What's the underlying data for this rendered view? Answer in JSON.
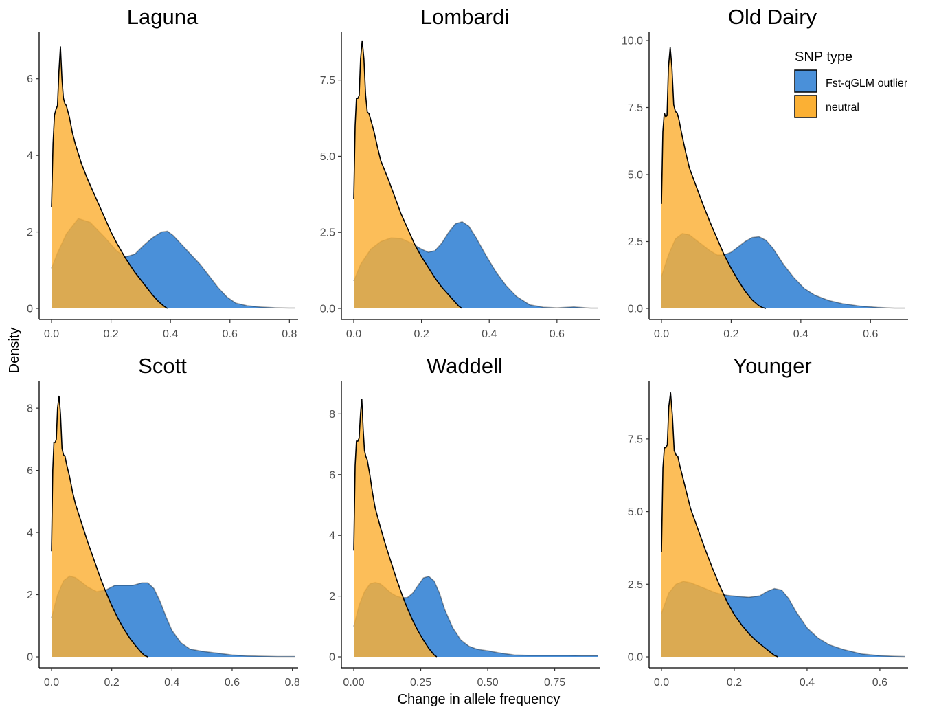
{
  "figure": {
    "ylabel": "Density",
    "xlabel": "Change in allele frequency"
  },
  "legend": {
    "title": "SNP type",
    "items": [
      {
        "label": "Fst-qGLM outlier",
        "color": "#4A90D9"
      },
      {
        "label": "neutral",
        "color": "#FBB034"
      }
    ],
    "placement": "top-right (inside Old Dairy panel)"
  },
  "colors": {
    "outlier": "#4A90D9",
    "neutral": "#FBB034",
    "overlap": "#D3A12F",
    "outline": "#000000"
  },
  "chart_data": [
    {
      "type": "area",
      "title": "Laguna",
      "xlim": [
        0,
        0.82
      ],
      "ylim": [
        0,
        7
      ],
      "xticks": [
        0.0,
        0.2,
        0.4,
        0.6,
        0.8
      ],
      "xtick_labels": [
        "0.0",
        "0.2",
        "0.4",
        "0.6",
        "0.8"
      ],
      "yticks": [
        0,
        2,
        4,
        6
      ],
      "ytick_labels": [
        "0",
        "2",
        "4",
        "6"
      ],
      "series": [
        {
          "name": "Fst-qGLM outlier",
          "x": [
            0.0,
            0.02,
            0.05,
            0.09,
            0.13,
            0.18,
            0.22,
            0.25,
            0.28,
            0.31,
            0.34,
            0.37,
            0.39,
            0.41,
            0.44,
            0.47,
            0.5,
            0.53,
            0.56,
            0.59,
            0.62,
            0.66,
            0.7,
            0.75,
            0.8,
            0.82
          ],
          "y": [
            1.05,
            1.45,
            1.95,
            2.35,
            2.25,
            1.85,
            1.5,
            1.35,
            1.42,
            1.65,
            1.85,
            2.0,
            2.02,
            1.9,
            1.65,
            1.4,
            1.15,
            0.85,
            0.55,
            0.3,
            0.14,
            0.07,
            0.04,
            0.02,
            0.01,
            0.01
          ]
        },
        {
          "name": "neutral",
          "x": [
            0.0,
            0.005,
            0.01,
            0.015,
            0.02,
            0.025,
            0.03,
            0.035,
            0.04,
            0.045,
            0.05,
            0.06,
            0.07,
            0.08,
            0.1,
            0.12,
            0.14,
            0.16,
            0.18,
            0.2,
            0.22,
            0.25,
            0.28,
            0.31,
            0.34,
            0.36,
            0.38,
            0.39
          ],
          "y": [
            2.65,
            4.3,
            5.05,
            5.2,
            5.3,
            6.2,
            6.85,
            6.0,
            5.5,
            5.35,
            5.3,
            5.0,
            4.6,
            4.3,
            3.8,
            3.4,
            3.05,
            2.7,
            2.35,
            2.0,
            1.7,
            1.3,
            0.95,
            0.65,
            0.35,
            0.18,
            0.05,
            0.0
          ]
        }
      ]
    },
    {
      "type": "area",
      "title": "Lombardi",
      "xlim": [
        0,
        0.72
      ],
      "ylim": [
        0,
        8.8
      ],
      "xticks": [
        0.0,
        0.2,
        0.4,
        0.6
      ],
      "xtick_labels": [
        "0.0",
        "0.2",
        "0.4",
        "0.6"
      ],
      "yticks": [
        0,
        2.5,
        5.0,
        7.5
      ],
      "ytick_labels": [
        "0.0",
        "2.5",
        "5.0",
        "7.5"
      ],
      "series": [
        {
          "name": "Fst-qGLM outlier",
          "x": [
            0.0,
            0.02,
            0.05,
            0.08,
            0.11,
            0.14,
            0.17,
            0.2,
            0.22,
            0.24,
            0.26,
            0.28,
            0.3,
            0.32,
            0.34,
            0.36,
            0.39,
            0.42,
            0.45,
            0.48,
            0.52,
            0.56,
            0.6,
            0.65,
            0.7,
            0.72
          ],
          "y": [
            0.9,
            1.45,
            1.95,
            2.2,
            2.32,
            2.3,
            2.15,
            1.95,
            1.85,
            1.9,
            2.15,
            2.5,
            2.78,
            2.85,
            2.7,
            2.35,
            1.75,
            1.2,
            0.75,
            0.4,
            0.12,
            0.04,
            0.02,
            0.05,
            0.01,
            0.01
          ]
        },
        {
          "name": "neutral",
          "x": [
            0.0,
            0.004,
            0.008,
            0.012,
            0.016,
            0.02,
            0.025,
            0.03,
            0.035,
            0.04,
            0.045,
            0.05,
            0.06,
            0.07,
            0.08,
            0.1,
            0.12,
            0.14,
            0.16,
            0.18,
            0.2,
            0.22,
            0.24,
            0.26,
            0.28,
            0.3,
            0.31,
            0.32
          ],
          "y": [
            3.6,
            6.0,
            6.9,
            6.9,
            7.0,
            8.2,
            8.8,
            8.2,
            7.0,
            6.45,
            6.4,
            6.2,
            5.8,
            5.3,
            4.85,
            4.3,
            3.7,
            3.1,
            2.6,
            2.1,
            1.7,
            1.35,
            1.0,
            0.7,
            0.45,
            0.2,
            0.08,
            0.0
          ]
        }
      ]
    },
    {
      "type": "area",
      "title": "Old Dairy",
      "xlim": [
        0,
        0.7
      ],
      "ylim": [
        0,
        10
      ],
      "xticks": [
        0.0,
        0.2,
        0.4,
        0.6
      ],
      "xtick_labels": [
        "0.0",
        "0.2",
        "0.4",
        "0.6"
      ],
      "yticks": [
        0,
        2.5,
        5.0,
        7.5,
        10.0
      ],
      "ytick_labels": [
        "0.0",
        "2.5",
        "5.0",
        "7.5",
        "10.0"
      ],
      "series": [
        {
          "name": "Fst-qGLM outlier",
          "x": [
            0.0,
            0.02,
            0.04,
            0.06,
            0.08,
            0.1,
            0.12,
            0.14,
            0.16,
            0.18,
            0.2,
            0.22,
            0.24,
            0.26,
            0.28,
            0.3,
            0.32,
            0.35,
            0.38,
            0.41,
            0.44,
            0.48,
            0.52,
            0.57,
            0.62,
            0.67,
            0.7
          ],
          "y": [
            1.2,
            2.0,
            2.6,
            2.8,
            2.75,
            2.55,
            2.35,
            2.15,
            2.0,
            2.0,
            2.1,
            2.3,
            2.5,
            2.65,
            2.68,
            2.55,
            2.25,
            1.65,
            1.15,
            0.75,
            0.5,
            0.3,
            0.18,
            0.09,
            0.04,
            0.01,
            0.01
          ]
        },
        {
          "name": "neutral",
          "x": [
            0.0,
            0.004,
            0.008,
            0.012,
            0.016,
            0.02,
            0.025,
            0.03,
            0.035,
            0.04,
            0.045,
            0.05,
            0.06,
            0.07,
            0.08,
            0.1,
            0.12,
            0.14,
            0.16,
            0.18,
            0.2,
            0.22,
            0.24,
            0.26,
            0.28,
            0.29,
            0.3
          ],
          "y": [
            3.9,
            6.6,
            7.3,
            7.15,
            7.2,
            9.0,
            9.75,
            9.0,
            7.6,
            7.35,
            7.3,
            7.05,
            6.4,
            5.8,
            5.25,
            4.55,
            3.85,
            3.2,
            2.6,
            2.0,
            1.5,
            1.05,
            0.65,
            0.32,
            0.1,
            0.03,
            0.0
          ]
        }
      ]
    },
    {
      "type": "area",
      "title": "Scott",
      "xlim": [
        0,
        0.81
      ],
      "ylim": [
        0,
        8.6
      ],
      "xticks": [
        0.0,
        0.2,
        0.4,
        0.6,
        0.8
      ],
      "xtick_labels": [
        "0.0",
        "0.2",
        "0.4",
        "0.6",
        "0.8"
      ],
      "yticks": [
        0,
        2,
        4,
        6,
        8
      ],
      "ytick_labels": [
        "0",
        "2",
        "4",
        "6",
        "8"
      ],
      "series": [
        {
          "name": "Fst-qGLM outlier",
          "x": [
            0.0,
            0.02,
            0.04,
            0.06,
            0.08,
            0.1,
            0.12,
            0.15,
            0.18,
            0.21,
            0.24,
            0.27,
            0.3,
            0.32,
            0.34,
            0.36,
            0.38,
            0.4,
            0.43,
            0.46,
            0.5,
            0.55,
            0.6,
            0.65,
            0.7,
            0.75,
            0.81
          ],
          "y": [
            1.25,
            2.0,
            2.45,
            2.6,
            2.55,
            2.4,
            2.25,
            2.1,
            2.15,
            2.3,
            2.3,
            2.3,
            2.38,
            2.38,
            2.2,
            1.8,
            1.3,
            0.85,
            0.45,
            0.25,
            0.18,
            0.12,
            0.06,
            0.03,
            0.02,
            0.01,
            0.01
          ]
        },
        {
          "name": "neutral",
          "x": [
            0.0,
            0.004,
            0.008,
            0.012,
            0.016,
            0.02,
            0.025,
            0.03,
            0.035,
            0.04,
            0.045,
            0.05,
            0.06,
            0.07,
            0.08,
            0.1,
            0.12,
            0.14,
            0.16,
            0.18,
            0.2,
            0.22,
            0.24,
            0.26,
            0.28,
            0.3,
            0.31,
            0.32
          ],
          "y": [
            3.4,
            6.0,
            6.9,
            6.9,
            7.0,
            8.0,
            8.4,
            7.8,
            6.7,
            6.5,
            6.45,
            6.2,
            5.8,
            5.3,
            4.9,
            4.3,
            3.7,
            3.15,
            2.6,
            2.1,
            1.65,
            1.25,
            0.9,
            0.6,
            0.35,
            0.12,
            0.04,
            0.0
          ]
        }
      ]
    },
    {
      "type": "area",
      "title": "Waddell",
      "xlim": [
        0,
        0.91
      ],
      "ylim": [
        0,
        8.8
      ],
      "xticks": [
        0.0,
        0.25,
        0.5,
        0.75
      ],
      "xtick_labels": [
        "0.00",
        "0.25",
        "0.50",
        "0.75"
      ],
      "yticks": [
        0,
        2,
        4,
        6,
        8
      ],
      "ytick_labels": [
        "0",
        "2",
        "4",
        "6",
        "8"
      ],
      "series": [
        {
          "name": "Fst-qGLM outlier",
          "x": [
            0.0,
            0.02,
            0.04,
            0.06,
            0.08,
            0.1,
            0.12,
            0.14,
            0.16,
            0.18,
            0.2,
            0.22,
            0.24,
            0.26,
            0.28,
            0.3,
            0.32,
            0.34,
            0.37,
            0.4,
            0.43,
            0.46,
            0.5,
            0.55,
            0.6,
            0.65,
            0.7,
            0.75,
            0.8,
            0.85,
            0.91
          ],
          "y": [
            1.0,
            1.7,
            2.15,
            2.4,
            2.45,
            2.4,
            2.25,
            2.1,
            2.0,
            1.95,
            1.95,
            2.1,
            2.35,
            2.6,
            2.65,
            2.5,
            2.1,
            1.55,
            0.95,
            0.55,
            0.35,
            0.25,
            0.2,
            0.12,
            0.06,
            0.05,
            0.05,
            0.05,
            0.05,
            0.04,
            0.04
          ]
        },
        {
          "name": "neutral",
          "x": [
            0.0,
            0.005,
            0.01,
            0.015,
            0.02,
            0.025,
            0.03,
            0.035,
            0.04,
            0.045,
            0.05,
            0.06,
            0.07,
            0.08,
            0.1,
            0.12,
            0.14,
            0.16,
            0.18,
            0.2,
            0.22,
            0.24,
            0.26,
            0.28,
            0.3,
            0.31
          ],
          "y": [
            3.5,
            6.3,
            7.1,
            7.1,
            7.2,
            8.0,
            8.5,
            7.5,
            6.8,
            6.6,
            6.5,
            6.0,
            5.4,
            4.9,
            4.25,
            3.65,
            3.1,
            2.55,
            2.05,
            1.6,
            1.2,
            0.85,
            0.55,
            0.28,
            0.06,
            0.0
          ]
        }
      ]
    },
    {
      "type": "area",
      "title": "Younger",
      "xlim": [
        0,
        0.67
      ],
      "ylim": [
        0,
        9.2
      ],
      "xticks": [
        0.0,
        0.2,
        0.4,
        0.6
      ],
      "xtick_labels": [
        "0.0",
        "0.2",
        "0.4",
        "0.6"
      ],
      "yticks": [
        0,
        2.5,
        5.0,
        7.5
      ],
      "ytick_labels": [
        "0.0",
        "2.5",
        "5.0",
        "7.5"
      ],
      "series": [
        {
          "name": "Fst-qGLM outlier",
          "x": [
            0.0,
            0.02,
            0.04,
            0.06,
            0.08,
            0.1,
            0.12,
            0.15,
            0.18,
            0.21,
            0.24,
            0.27,
            0.29,
            0.31,
            0.33,
            0.35,
            0.37,
            0.4,
            0.43,
            0.46,
            0.5,
            0.55,
            0.6,
            0.64,
            0.67
          ],
          "y": [
            1.5,
            2.2,
            2.5,
            2.6,
            2.55,
            2.45,
            2.35,
            2.2,
            2.12,
            2.08,
            2.05,
            2.1,
            2.25,
            2.35,
            2.3,
            2.0,
            1.55,
            1.0,
            0.65,
            0.42,
            0.25,
            0.1,
            0.04,
            0.02,
            0.01
          ]
        },
        {
          "name": "neutral",
          "x": [
            0.0,
            0.004,
            0.008,
            0.012,
            0.016,
            0.02,
            0.025,
            0.03,
            0.035,
            0.04,
            0.045,
            0.05,
            0.06,
            0.07,
            0.08,
            0.1,
            0.12,
            0.14,
            0.16,
            0.18,
            0.2,
            0.22,
            0.24,
            0.26,
            0.28,
            0.3,
            0.31,
            0.32
          ],
          "y": [
            3.6,
            6.5,
            7.2,
            7.2,
            7.3,
            8.6,
            9.1,
            8.3,
            7.1,
            6.95,
            6.9,
            6.6,
            6.1,
            5.6,
            5.1,
            4.4,
            3.7,
            3.05,
            2.45,
            1.9,
            1.45,
            1.1,
            0.8,
            0.55,
            0.35,
            0.15,
            0.05,
            0.0
          ]
        }
      ]
    }
  ]
}
